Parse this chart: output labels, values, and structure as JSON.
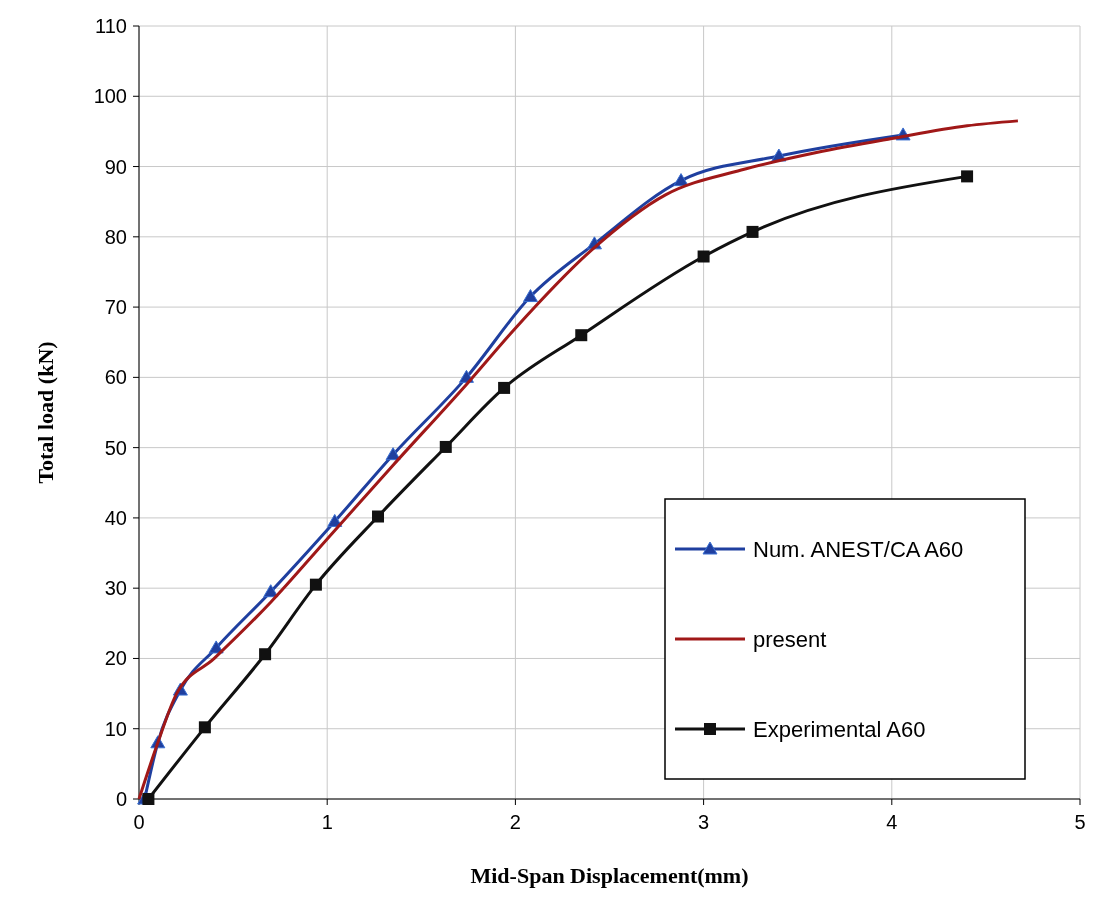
{
  "chart_data": {
    "type": "line",
    "xlabel": "Mid-Span Displacement(mm)",
    "ylabel": "Total load (kN)",
    "xlim": [
      0,
      5
    ],
    "xticks": [
      0,
      1,
      2,
      3,
      4,
      5
    ],
    "ylim": [
      0,
      110
    ],
    "yticks": [
      0,
      10,
      20,
      30,
      40,
      50,
      60,
      70,
      80,
      90,
      100,
      110
    ],
    "grid": true,
    "legend": "bottom right",
    "line_style": "solid",
    "series": [
      {
        "name": "Num. ANEST/CA A60",
        "color": "#1f3f9f",
        "marker": "triangle",
        "x": [
          0.03,
          0.1,
          0.22,
          0.41,
          0.7,
          1.04,
          1.35,
          1.74,
          2.08,
          2.42,
          2.88,
          3.4,
          4.06
        ],
        "values": [
          0,
          8,
          15.5,
          21.5,
          29.5,
          39.5,
          49,
          60,
          71.5,
          79,
          88,
          91.5,
          94.5
        ]
      },
      {
        "name": "present",
        "color": "#a01818",
        "marker": "none",
        "x": [
          0,
          0.1,
          0.2,
          0.4,
          0.7,
          1.0,
          1.35,
          1.74,
          2.0,
          2.4,
          2.8,
          3.2,
          3.6,
          4.0,
          4.4,
          4.67
        ],
        "values": [
          0,
          8,
          15,
          20,
          28,
          37,
          47.5,
          59,
          67,
          78,
          86,
          89.5,
          92,
          94,
          95.8,
          96.5
        ]
      },
      {
        "name": "Experimental A60",
        "color": "#111111",
        "marker": "square",
        "x": [
          0.05,
          0.35,
          0.67,
          0.94,
          1.27,
          1.63,
          1.94,
          2.35,
          3.0,
          3.26,
          4.4
        ],
        "values": [
          0,
          10.2,
          20.6,
          30.5,
          40.2,
          50.1,
          58.5,
          66,
          77.2,
          80.7,
          88.6
        ]
      }
    ]
  }
}
